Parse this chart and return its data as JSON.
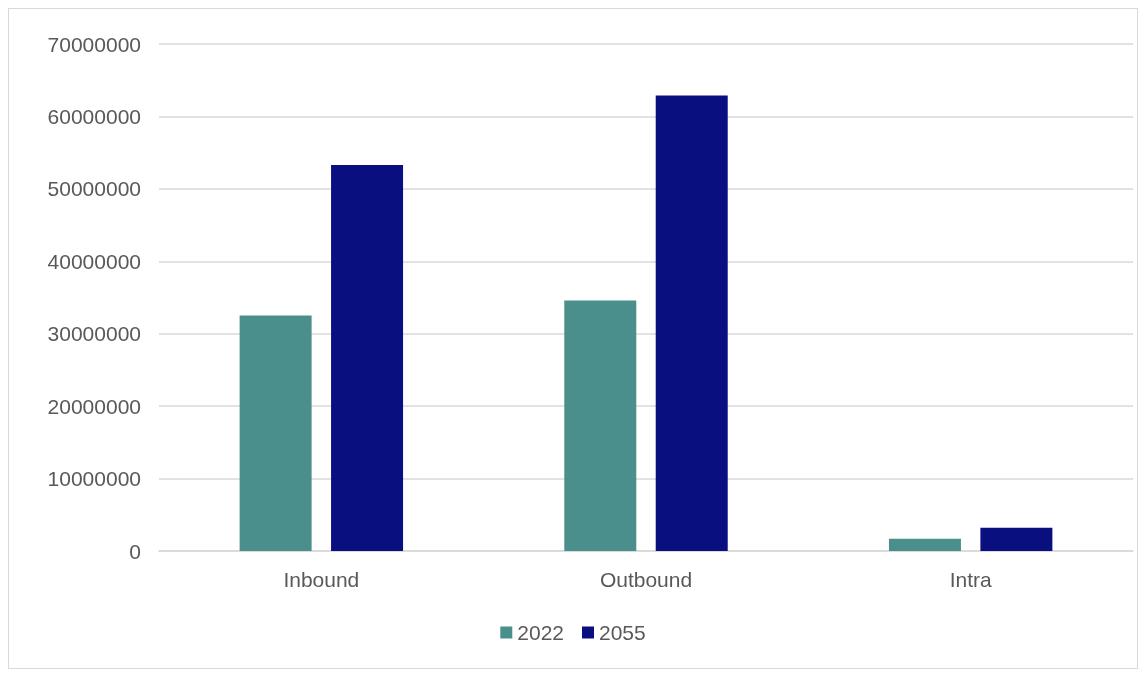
{
  "chart_data": {
    "type": "bar",
    "categories": [
      "Inbound",
      "Outbound",
      "Intra"
    ],
    "series": [
      {
        "name": "2022",
        "color": "#4a8f8c",
        "values": [
          32500000,
          34600000,
          1700000
        ]
      },
      {
        "name": "2055",
        "color": "#0a0f80",
        "values": [
          53300000,
          62900000,
          3200000
        ]
      }
    ],
    "ylim": [
      0,
      70000000
    ],
    "yticks": [
      0,
      10000000,
      20000000,
      30000000,
      40000000,
      50000000,
      60000000,
      70000000
    ],
    "grid": "y",
    "legend": "bottom"
  }
}
